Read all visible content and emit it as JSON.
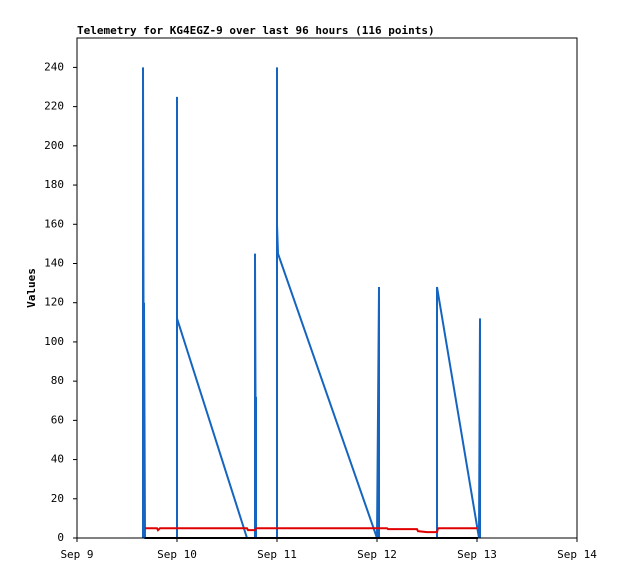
{
  "chart_data": {
    "type": "line",
    "title": "Telemetry for KG4EGZ-9 over last 96 hours (116 points)",
    "y_label": "Values",
    "xlim": [
      9,
      14
    ],
    "xticks": [
      {
        "value": 9,
        "label": "Sep 9"
      },
      {
        "value": 10,
        "label": "Sep 10"
      },
      {
        "value": 11,
        "label": "Sep 11"
      },
      {
        "value": 12,
        "label": "Sep 12"
      },
      {
        "value": 13,
        "label": "Sep 13"
      },
      {
        "value": 14,
        "label": "Sep 14"
      }
    ],
    "ylim": [
      0,
      255
    ],
    "yticks": [
      0,
      20,
      40,
      60,
      80,
      100,
      120,
      140,
      160,
      180,
      200,
      220,
      240
    ],
    "grid": false,
    "series": [
      {
        "color": "#1565c0",
        "x": [
          9.66,
          9.66,
          9.66,
          9.67,
          9.67,
          9.68,
          10.0,
          10.0,
          10.0,
          10.0,
          10.7,
          10.78,
          10.78,
          10.79,
          10.79,
          10.79,
          11.0,
          11.0,
          11.0,
          11.01,
          12.0,
          12.02,
          12.02,
          12.6,
          12.6,
          13.02,
          13.03,
          13.03
        ],
        "values": [
          0,
          128,
          240,
          0,
          120,
          0,
          0,
          160,
          225,
          112,
          0,
          0,
          145,
          0,
          72,
          0,
          0,
          240,
          160,
          145,
          0,
          128,
          0,
          0,
          128,
          0,
          112,
          0
        ]
      },
      {
        "color": "#e00000",
        "x": [
          9.68,
          9.8,
          9.81,
          9.83,
          10.7,
          10.71,
          10.78,
          10.79,
          12.1,
          12.11,
          12.4,
          12.41,
          12.5,
          12.6,
          12.61,
          13.0
        ],
        "values": [
          5,
          5,
          4,
          5,
          5,
          4,
          4,
          5,
          5,
          4.5,
          4.5,
          3.5,
          3,
          3,
          5,
          5
        ]
      },
      {
        "color": "#000000",
        "x": [
          9.68,
          13.01
        ],
        "values": [
          0,
          0
        ]
      }
    ]
  }
}
